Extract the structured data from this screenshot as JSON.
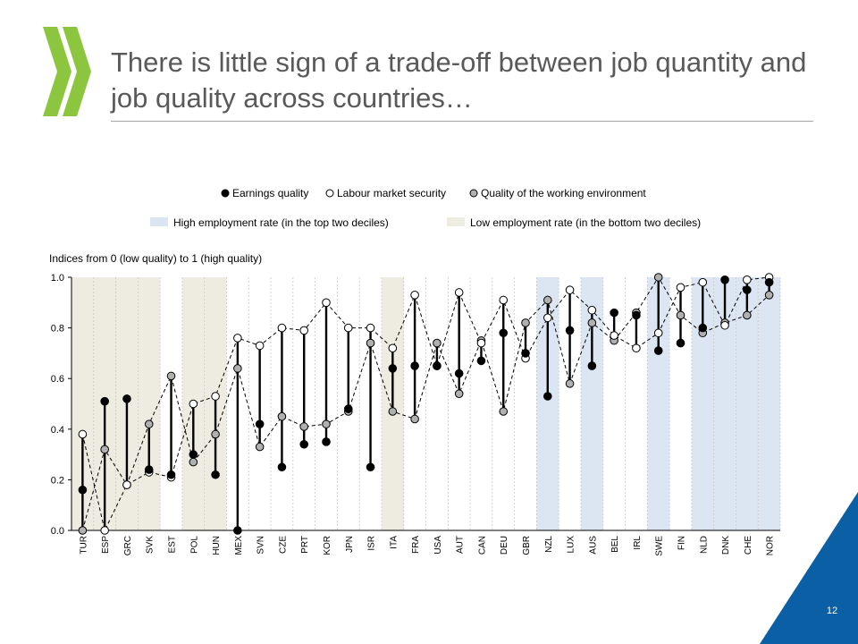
{
  "slide": {
    "title": "There is little sign of a trade-off between job quantity and job quality across countries…",
    "page_number": "12"
  },
  "colors": {
    "high_band": "#dce6f2",
    "low_band": "#eeebe0",
    "earnings": "#000000",
    "security": "#ffffff",
    "environment": "#b0b0b0",
    "logo": "#8cc63f",
    "corner": "#0b5fa5"
  },
  "chart_data": {
    "type": "scatter",
    "ylabel": "Indices from 0 (low quality) to 1 (high quality)",
    "ylim": [
      0,
      1
    ],
    "yticks": [
      "0.0",
      "0.2",
      "0.4",
      "0.6",
      "0.8",
      "1.0"
    ],
    "grid": "vertical category separators",
    "legend_placement": "top",
    "categories": [
      "TUR",
      "ESP",
      "GRC",
      "SVK",
      "EST",
      "POL",
      "HUN",
      "MEX",
      "SVN",
      "CZE",
      "PRT",
      "KOR",
      "JPN",
      "ISR",
      "ITA",
      "FRA",
      "USA",
      "AUT",
      "CAN",
      "DEU",
      "GBR",
      "NZL",
      "LUX",
      "AUS",
      "BEL",
      "IRL",
      "SWE",
      "FIN",
      "NLD",
      "DNK",
      "CHE",
      "NOR"
    ],
    "bands": {
      "high_label": "High employment rate (in the top two deciles)",
      "low_label": "Low employment rate (in the bottom  two deciles)",
      "high": [
        "NZL",
        "AUS",
        "SWE",
        "NLD",
        "DNK",
        "CHE",
        "NOR"
      ],
      "low": [
        "TUR",
        "ESP",
        "GRC",
        "SVK",
        "POL",
        "HUN",
        "ITA"
      ]
    },
    "series": [
      {
        "name": "Earnings quality",
        "marker": "filled-black",
        "values": [
          0.16,
          0.51,
          0.52,
          0.24,
          0.22,
          0.3,
          0.22,
          0.0,
          0.42,
          0.25,
          0.34,
          0.35,
          0.48,
          0.25,
          0.64,
          0.65,
          0.65,
          0.62,
          0.67,
          0.78,
          0.7,
          0.53,
          0.79,
          0.65,
          0.86,
          0.85,
          0.71,
          0.74,
          0.8,
          0.99,
          0.95,
          0.98
        ]
      },
      {
        "name": "Labour market security",
        "marker": "hollow",
        "values": [
          0.38,
          0.0,
          0.18,
          0.23,
          0.21,
          0.5,
          0.53,
          0.76,
          0.73,
          0.8,
          0.79,
          0.9,
          0.8,
          0.8,
          0.72,
          0.93,
          0.65,
          0.94,
          0.74,
          0.91,
          0.68,
          0.84,
          0.95,
          0.87,
          0.77,
          0.72,
          0.78,
          0.96,
          0.98,
          0.81,
          0.99,
          1.0
        ]
      },
      {
        "name": "Quality of the working environment",
        "marker": "filled-grey",
        "values": [
          0.0,
          0.32,
          0.18,
          0.42,
          0.61,
          0.27,
          0.38,
          0.64,
          0.33,
          0.45,
          0.41,
          0.42,
          0.47,
          0.74,
          0.47,
          0.44,
          0.74,
          0.54,
          0.75,
          0.47,
          0.82,
          0.91,
          0.58,
          0.82,
          0.75,
          0.86,
          1.0,
          0.85,
          0.78,
          0.82,
          0.85,
          0.93
        ]
      }
    ]
  }
}
